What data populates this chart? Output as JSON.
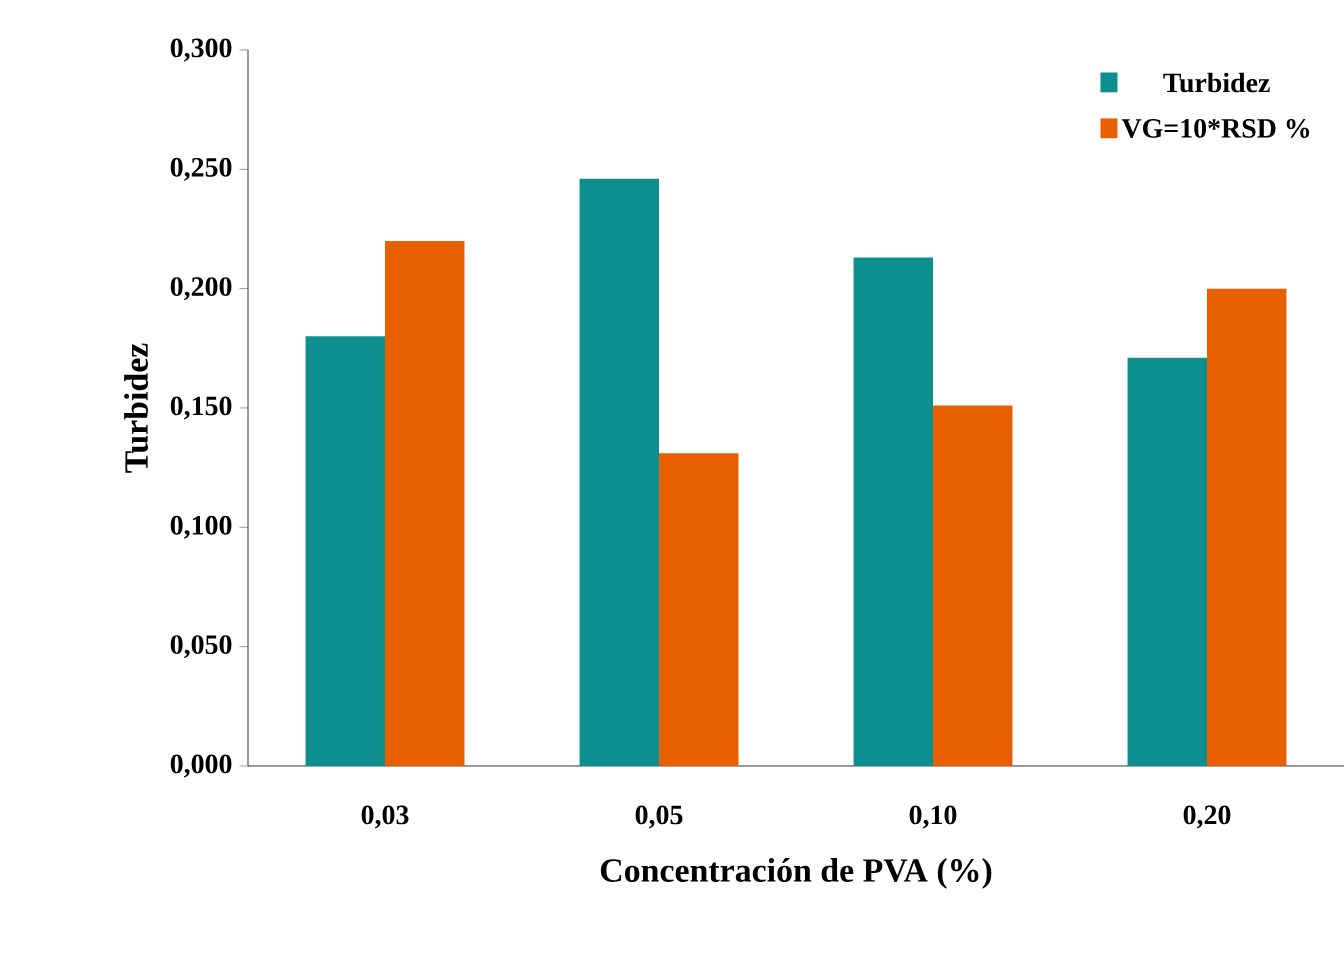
{
  "chart_data": {
    "type": "bar",
    "xlabel": "Concentración de PVA (%)",
    "ylabel": "Turbidez",
    "categories": [
      "0,03",
      "0,05",
      "0,10",
      "0,20"
    ],
    "series": [
      {
        "name": "Turbidez",
        "color": "#0e8f8f",
        "values": [
          0.18,
          0.246,
          0.213,
          0.171
        ]
      },
      {
        "name": "VG=10*RSD %",
        "color": "#e85f00",
        "values": [
          0.22,
          0.131,
          0.151,
          0.2
        ]
      }
    ],
    "ylim": [
      0,
      0.3
    ],
    "yticks": [
      {
        "value": 0,
        "label": "0,000"
      },
      {
        "value": 0.05,
        "label": "0,050"
      },
      {
        "value": 0.1,
        "label": "0,100"
      },
      {
        "value": 0.15,
        "label": "0,150"
      },
      {
        "value": 0.2,
        "label": "0,200"
      },
      {
        "value": 0.25,
        "label": "0,250"
      },
      {
        "value": 0.3,
        "label": "0,300"
      }
    ],
    "grid": false,
    "legend": "top right"
  }
}
